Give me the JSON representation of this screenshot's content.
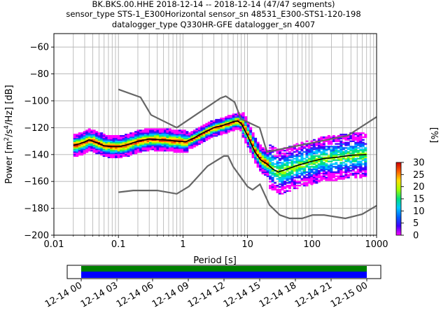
{
  "title_lines": [
    "BK.BKS.00.HHE   2018-12-14 -- 2018-12-14  (47/47 segments)",
    "sensor_type STS-1_E300Horizontal sensor_sn 48531_E300-STS1-120-198",
    "datalogger_type Q330HR-GFE datalogger_sn 4007"
  ],
  "chart_data": {
    "type": "heatmap",
    "title": "BK.BKS.00.HHE 2018-12-14 -- 2018-12-14 (47/47 segments)",
    "xlabel": "Period [s]",
    "ylabel": "Power [m²/s⁴/Hz] [dB]",
    "xscale": "log",
    "xlim": [
      0.01,
      1000
    ],
    "ylim": [
      -200,
      -50
    ],
    "xticks": [
      0.01,
      0.1,
      1,
      10,
      100,
      1000
    ],
    "xtick_labels": [
      "0.01",
      "0.1",
      "1",
      "10",
      "100",
      "1000"
    ],
    "yticks": [
      -200,
      -180,
      -160,
      -140,
      -120,
      -100,
      -80,
      -60
    ],
    "ytick_labels": [
      "−200",
      "−180",
      "−160",
      "−140",
      "−120",
      "−100",
      "−80",
      "−60"
    ],
    "grid": true,
    "colorbar": {
      "label": "[%]",
      "range": [
        0,
        30
      ],
      "ticks": [
        0,
        5,
        10,
        15,
        20,
        25,
        30
      ],
      "tick_labels": [
        "0",
        "5",
        "10",
        "15",
        "20",
        "25",
        "30"
      ],
      "colors": [
        "#ff00ff",
        "#4000ff",
        "#0060ff",
        "#00c8ff",
        "#00e080",
        "#a0ff00",
        "#ffe000",
        "#ff6000",
        "#cc0000"
      ]
    },
    "noise_models": {
      "high_noise_model": [
        [
          0.1,
          -91.5
        ],
        [
          0.22,
          -97.4
        ],
        [
          0.32,
          -110.5
        ],
        [
          0.8,
          -120
        ],
        [
          3.8,
          -98
        ],
        [
          4.6,
          -96.5
        ],
        [
          6.3,
          -101
        ],
        [
          7.9,
          -113.5
        ],
        [
          15.4,
          -120
        ],
        [
          20,
          -138
        ],
        [
          354.8,
          -126
        ],
        [
          1000,
          -112
        ]
      ],
      "low_noise_model": [
        [
          0.1,
          -168
        ],
        [
          0.17,
          -166.7
        ],
        [
          0.4,
          -166.7
        ],
        [
          0.8,
          -169.2
        ],
        [
          1.24,
          -163.7
        ],
        [
          2.4,
          -148.6
        ],
        [
          4.3,
          -141.1
        ],
        [
          5,
          -141.1
        ],
        [
          6,
          -149
        ],
        [
          10,
          -163.8
        ],
        [
          12,
          -166.2
        ],
        [
          15.6,
          -162.1
        ],
        [
          21.9,
          -177.5
        ],
        [
          31.6,
          -185
        ],
        [
          45,
          -187.5
        ],
        [
          70,
          -187.5
        ],
        [
          101,
          -185
        ],
        [
          154,
          -185
        ],
        [
          328,
          -187.5
        ],
        [
          600,
          -184.4
        ],
        [
          1000,
          -178
        ]
      ]
    },
    "mean_curve": [
      [
        0.02,
        -133
      ],
      [
        0.025,
        -132
      ],
      [
        0.03,
        -130.5
      ],
      [
        0.035,
        -129
      ],
      [
        0.045,
        -131
      ],
      [
        0.06,
        -133.5
      ],
      [
        0.08,
        -134
      ],
      [
        0.1,
        -134
      ],
      [
        0.13,
        -133
      ],
      [
        0.2,
        -130
      ],
      [
        0.3,
        -128.5
      ],
      [
        0.5,
        -129
      ],
      [
        0.8,
        -130
      ],
      [
        1.1,
        -130.5
      ],
      [
        1.5,
        -127.5
      ],
      [
        2,
        -124
      ],
      [
        3,
        -120
      ],
      [
        4,
        -118.5
      ],
      [
        5,
        -117
      ],
      [
        6,
        -115.5
      ],
      [
        7,
        -115
      ],
      [
        8,
        -117
      ],
      [
        10,
        -126
      ],
      [
        13,
        -138
      ],
      [
        16,
        -144
      ],
      [
        20,
        -147
      ],
      [
        25,
        -151
      ],
      [
        30,
        -153
      ],
      [
        40,
        -151
      ],
      [
        60,
        -148
      ],
      [
        100,
        -145
      ],
      [
        150,
        -143
      ],
      [
        250,
        -142
      ],
      [
        400,
        -140.5
      ],
      [
        700,
        -140
      ]
    ],
    "psd_density_bands": [
      {
        "period_range": [
          0.02,
          0.2
        ],
        "db_range": [
          -140,
          -126
        ]
      },
      {
        "period_range": [
          0.2,
          1.2
        ],
        "db_range": [
          -136,
          -123
        ]
      },
      {
        "period_range": [
          1.2,
          8
        ],
        "db_range": [
          -128,
          -112
        ]
      },
      {
        "period_range": [
          8,
          20
        ],
        "db_range": [
          -150,
          -118
        ]
      },
      {
        "period_range": [
          20,
          700
        ],
        "db_range": [
          -168,
          -132
        ]
      }
    ],
    "time_axis": {
      "range": [
        "2018-12-14 00",
        "2018-12-15 00"
      ],
      "tick_labels": [
        "12-14 00",
        "12-14 03",
        "12-14 06",
        "12-14 09",
        "12-14 12",
        "12-14 15",
        "12-14 18",
        "12-14 21",
        "12-15 00"
      ],
      "coverage_colors": [
        "#008000",
        "#0000ff"
      ]
    }
  }
}
